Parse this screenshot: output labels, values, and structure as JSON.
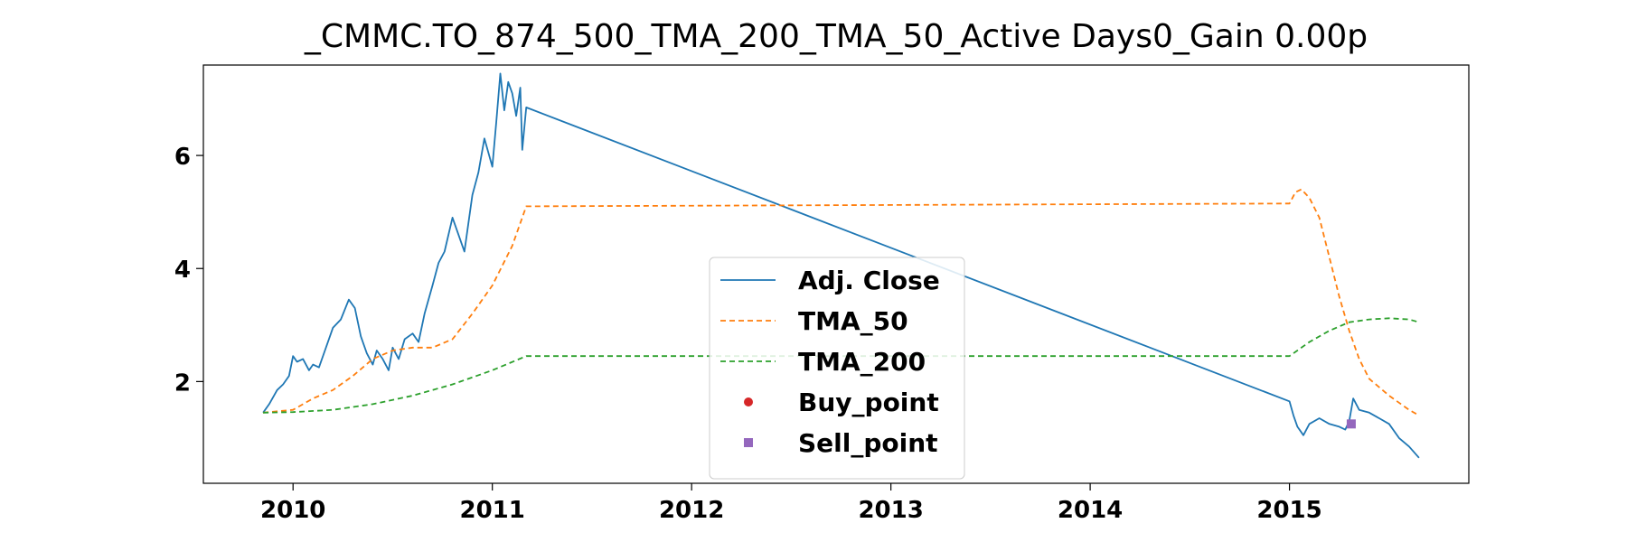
{
  "chart_data": {
    "type": "line",
    "title": "_CMMC.TO_874_500_TMA_200_TMA_50_Active Days0_Gain   0.00p",
    "xlabel": "",
    "ylabel": "",
    "xlim": [
      2009.55,
      2015.9
    ],
    "ylim": [
      0.2,
      7.6
    ],
    "x_ticks": [
      2010,
      2011,
      2012,
      2013,
      2014,
      2015
    ],
    "x_tick_labels": [
      "2010",
      "2011",
      "2012",
      "2013",
      "2014",
      "2015"
    ],
    "y_ticks": [
      2,
      4,
      6
    ],
    "y_tick_labels": [
      "2",
      "4",
      "6"
    ],
    "grid": false,
    "legend_position": "lower-center",
    "series": [
      {
        "name": "Adj. Close",
        "style": "solid",
        "color": "#1f77b4",
        "x": [
          2009.85,
          2009.88,
          2009.92,
          2009.95,
          2009.98,
          2010.0,
          2010.02,
          2010.05,
          2010.08,
          2010.1,
          2010.13,
          2010.16,
          2010.2,
          2010.24,
          2010.28,
          2010.31,
          2010.34,
          2010.37,
          2010.4,
          2010.42,
          2010.45,
          2010.48,
          2010.5,
          2010.53,
          2010.56,
          2010.6,
          2010.63,
          2010.66,
          2010.7,
          2010.73,
          2010.76,
          2010.8,
          2010.83,
          2010.86,
          2010.9,
          2010.93,
          2010.96,
          2011.0,
          2011.02,
          2011.04,
          2011.06,
          2011.08,
          2011.1,
          2011.12,
          2011.14,
          2011.15,
          2011.17,
          2015.0,
          2015.02,
          2015.04,
          2015.07,
          2015.1,
          2015.15,
          2015.2,
          2015.25,
          2015.28,
          2015.3,
          2015.32,
          2015.35,
          2015.4,
          2015.45,
          2015.5,
          2015.55,
          2015.6,
          2015.65
        ],
        "y": [
          1.45,
          1.6,
          1.85,
          1.95,
          2.1,
          2.45,
          2.35,
          2.4,
          2.2,
          2.3,
          2.25,
          2.55,
          2.95,
          3.1,
          3.45,
          3.3,
          2.8,
          2.5,
          2.3,
          2.55,
          2.4,
          2.2,
          2.6,
          2.4,
          2.75,
          2.85,
          2.7,
          3.2,
          3.7,
          4.1,
          4.3,
          4.9,
          4.6,
          4.3,
          5.3,
          5.7,
          6.3,
          5.8,
          6.6,
          7.45,
          6.8,
          7.3,
          7.1,
          6.7,
          7.2,
          6.1,
          6.85,
          1.65,
          1.4,
          1.2,
          1.05,
          1.25,
          1.35,
          1.25,
          1.2,
          1.15,
          1.3,
          1.7,
          1.5,
          1.45,
          1.35,
          1.25,
          1.0,
          0.85,
          0.65
        ]
      },
      {
        "name": "TMA_50",
        "style": "dashed",
        "color": "#ff7f0e",
        "x": [
          2009.85,
          2010.0,
          2010.1,
          2010.2,
          2010.3,
          2010.4,
          2010.5,
          2010.6,
          2010.7,
          2010.8,
          2010.9,
          2011.0,
          2011.1,
          2011.17,
          2015.0,
          2015.03,
          2015.06,
          2015.1,
          2015.15,
          2015.2,
          2015.25,
          2015.3,
          2015.35,
          2015.4,
          2015.5,
          2015.6,
          2015.65
        ],
        "y": [
          1.45,
          1.5,
          1.7,
          1.85,
          2.1,
          2.4,
          2.55,
          2.6,
          2.6,
          2.75,
          3.2,
          3.7,
          4.4,
          5.1,
          5.15,
          5.35,
          5.4,
          5.25,
          4.9,
          4.2,
          3.5,
          2.9,
          2.4,
          2.05,
          1.75,
          1.5,
          1.4
        ]
      },
      {
        "name": "TMA_200",
        "style": "dashed",
        "color": "#2ca02c",
        "x": [
          2009.85,
          2010.0,
          2010.2,
          2010.4,
          2010.6,
          2010.8,
          2011.0,
          2011.17,
          2015.0,
          2015.1,
          2015.2,
          2015.3,
          2015.4,
          2015.5,
          2015.6,
          2015.65
        ],
        "y": [
          1.45,
          1.46,
          1.5,
          1.6,
          1.75,
          1.95,
          2.2,
          2.45,
          2.45,
          2.7,
          2.9,
          3.05,
          3.1,
          3.12,
          3.1,
          3.05
        ]
      },
      {
        "name": "Buy_point",
        "style": "marker-circle",
        "color": "#d62728",
        "x": [],
        "y": []
      },
      {
        "name": "Sell_point",
        "style": "marker-square",
        "color": "#9467bd",
        "x": [
          2015.31
        ],
        "y": [
          1.25
        ]
      }
    ]
  }
}
